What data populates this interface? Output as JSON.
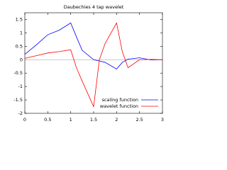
{
  "chart_data": {
    "type": "line",
    "title": "Daubechies 4 tap wavelet",
    "x": [
      0,
      0.25,
      0.5,
      0.75,
      1,
      1.125,
      1.25,
      1.5,
      1.625,
      1.75,
      2,
      2.125,
      2.25,
      2.5,
      2.75,
      3
    ],
    "series": [
      {
        "name": "scaling function",
        "color": "#0000ff",
        "values": [
          0.2,
          0.55,
          0.93,
          1.1,
          1.37,
          0.85,
          0.35,
          0.0,
          -0.05,
          -0.1,
          -0.35,
          -0.1,
          0.02,
          0.07,
          -0.01,
          0
        ]
      },
      {
        "name": "wavelet function",
        "color": "#ff0000",
        "values": [
          0.05,
          0.15,
          0.25,
          0.3,
          0.37,
          -0.3,
          -0.8,
          -1.75,
          0.0,
          0.6,
          1.37,
          0.3,
          -0.3,
          0.0,
          0.01,
          0
        ]
      }
    ],
    "xlim": [
      0,
      3
    ],
    "xticks": [
      0,
      0.5,
      1,
      1.5,
      2,
      2.5,
      3
    ],
    "ylim": [
      -2,
      1.75
    ],
    "yticks": [
      -2,
      -1.5,
      -1,
      -0.5,
      0,
      0.5,
      1,
      1.5
    ],
    "zero_axis": true,
    "legend": "bottom-right"
  }
}
